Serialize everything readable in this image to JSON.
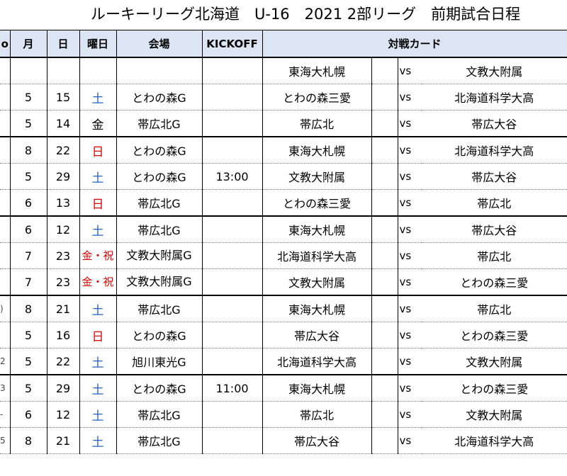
{
  "title": "ルーキーリーグ北海道　U-16　2021 2部リーグ　前期試合日程",
  "headers": {
    "edge": "o",
    "month": "月",
    "day": "日",
    "dow": "曜日",
    "venue": "会場",
    "kickoff": "KICKOFF",
    "match": "対戦カード"
  },
  "rows": [
    {
      "edge": "",
      "month": "",
      "day": "",
      "dow": "",
      "dow_color": "",
      "venue": "",
      "kickoff": "",
      "team1": "東海大札幌",
      "vs": "vs",
      "team2": "文教大附属",
      "group_start": true
    },
    {
      "edge": "",
      "month": "5",
      "day": "15",
      "dow": "土",
      "dow_color": "sat",
      "venue": "とわの森G",
      "kickoff": "",
      "team1": "とわの森三愛",
      "vs": "vs",
      "team2": "北海道科学大高",
      "group_start": false
    },
    {
      "edge": "",
      "month": "5",
      "day": "14",
      "dow": "金",
      "dow_color": "",
      "venue": "帯広北G",
      "kickoff": "",
      "team1": "帯広北",
      "vs": "vs",
      "team2": "帯広大谷",
      "group_start": false
    },
    {
      "edge": "",
      "month": "8",
      "day": "22",
      "dow": "日",
      "dow_color": "sun",
      "venue": "とわの森G",
      "kickoff": "",
      "team1": "東海大札幌",
      "vs": "vs",
      "team2": "北海道科学大高",
      "group_start": true
    },
    {
      "edge": "",
      "month": "5",
      "day": "29",
      "dow": "土",
      "dow_color": "sat",
      "venue": "とわの森G",
      "kickoff": "13:00",
      "team1": "文教大附属",
      "vs": "vs",
      "team2": "帯広大谷",
      "group_start": false
    },
    {
      "edge": "",
      "month": "6",
      "day": "13",
      "dow": "日",
      "dow_color": "sun",
      "venue": "帯広北G",
      "kickoff": "",
      "team1": "とわの森三愛",
      "vs": "vs",
      "team2": "帯広北",
      "group_start": false
    },
    {
      "edge": "",
      "month": "6",
      "day": "12",
      "dow": "土",
      "dow_color": "sat",
      "venue": "帯広北G",
      "kickoff": "",
      "team1": "東海大札幌",
      "vs": "vs",
      "team2": "帯広大谷",
      "group_start": true
    },
    {
      "edge": "",
      "month": "7",
      "day": "23",
      "dow": "金・祝",
      "dow_color": "sun",
      "venue": "文教大附属G",
      "kickoff": "",
      "team1": "北海道科学大高",
      "vs": "vs",
      "team2": "帯広北",
      "group_start": false,
      "twoline": true
    },
    {
      "edge": "",
      "month": "7",
      "day": "23",
      "dow": "金・祝",
      "dow_color": "sun",
      "venue": "文教大附属G",
      "kickoff": "",
      "team1": "文教大附属",
      "vs": "vs",
      "team2": "とわの森三愛",
      "group_start": false,
      "twoline": true
    },
    {
      "edge": ")",
      "month": "8",
      "day": "21",
      "dow": "土",
      "dow_color": "sat",
      "venue": "帯広北G",
      "kickoff": "",
      "team1": "東海大札幌",
      "vs": "vs",
      "team2": "帯広北",
      "group_start": true
    },
    {
      "edge": "",
      "month": "5",
      "day": "16",
      "dow": "日",
      "dow_color": "sun",
      "venue": "とわの森G",
      "kickoff": "",
      "team1": "帯広大谷",
      "vs": "vs",
      "team2": "とわの森三愛",
      "group_start": false
    },
    {
      "edge": "2",
      "month": "5",
      "day": "22",
      "dow": "土",
      "dow_color": "sat",
      "venue": "旭川東光G",
      "kickoff": "",
      "team1": "北海道科学大高",
      "vs": "vs",
      "team2": "文教大附属",
      "group_start": false
    },
    {
      "edge": "3",
      "month": "5",
      "day": "29",
      "dow": "土",
      "dow_color": "sat",
      "venue": "とわの森G",
      "kickoff": "11:00",
      "team1": "東海大札幌",
      "vs": "vs",
      "team2": "とわの森三愛",
      "group_start": true
    },
    {
      "edge": "-",
      "month": "6",
      "day": "12",
      "dow": "土",
      "dow_color": "sat",
      "venue": "帯広北G",
      "kickoff": "",
      "team1": "帯広北",
      "vs": "vs",
      "team2": "文教大附属",
      "group_start": false
    },
    {
      "edge": "5",
      "month": "8",
      "day": "21",
      "dow": "土",
      "dow_color": "sat",
      "venue": "帯広北G",
      "kickoff": "",
      "team1": "帯広大谷",
      "vs": "vs",
      "team2": "北海道科学大高",
      "group_start": false
    }
  ]
}
